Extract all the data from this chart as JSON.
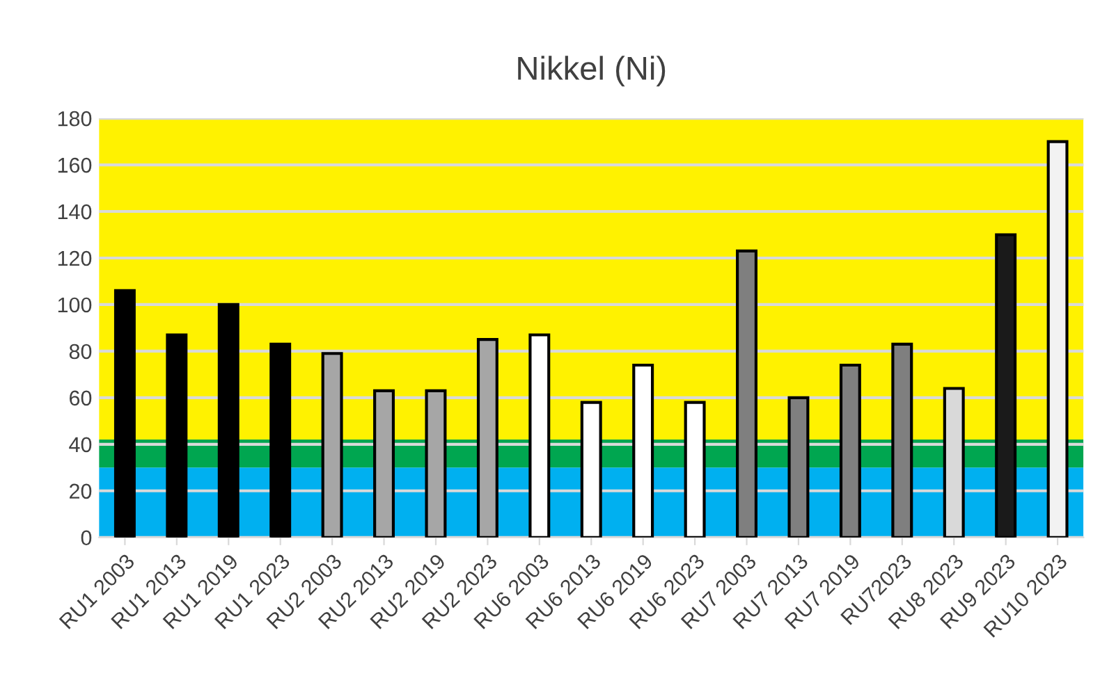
{
  "chart_data": {
    "type": "bar",
    "title": "Nikkel (Ni)",
    "categories": [
      "RU1 2003",
      "RU1 2013",
      "RU1 2019",
      "RU1 2023",
      "RU2 2003",
      "RU2 2013",
      "RU2 2019",
      "RU2 2023",
      "RU6 2003",
      "RU6 2013",
      "RU6 2019",
      "RU6 2023",
      "RU7 2003",
      "RU7 2013",
      "RU7 2019",
      "RU72023",
      "RU8 2023",
      "RU9 2023",
      "RU10 2023"
    ],
    "values": [
      106,
      87,
      100,
      83,
      79,
      63,
      63,
      85,
      87,
      58,
      74,
      58,
      123,
      60,
      74,
      83,
      64,
      130,
      170
    ],
    "colors": [
      "#000000",
      "#000000",
      "#000000",
      "#000000",
      "#a6a6a6",
      "#a6a6a6",
      "#a6a6a6",
      "#a6a6a6",
      "#ffffff",
      "#ffffff",
      "#ffffff",
      "#ffffff",
      "#7f7f7f",
      "#7f7f7f",
      "#7f7f7f",
      "#7f7f7f",
      "#d9d9d9",
      "#1a1a1a",
      "#f2f2f2"
    ],
    "ylim": [
      0,
      180
    ],
    "yticks": [
      0,
      20,
      40,
      60,
      80,
      100,
      120,
      140,
      160,
      180
    ],
    "grid": "y",
    "bands": [
      {
        "axis": "y",
        "from": 0,
        "to": 30,
        "color": "#00b0f0"
      },
      {
        "axis": "y",
        "from": 30,
        "to": 42,
        "color": "#00a650"
      },
      {
        "axis": "y",
        "from": 42,
        "to": 180,
        "color": "#fff200"
      }
    ]
  }
}
